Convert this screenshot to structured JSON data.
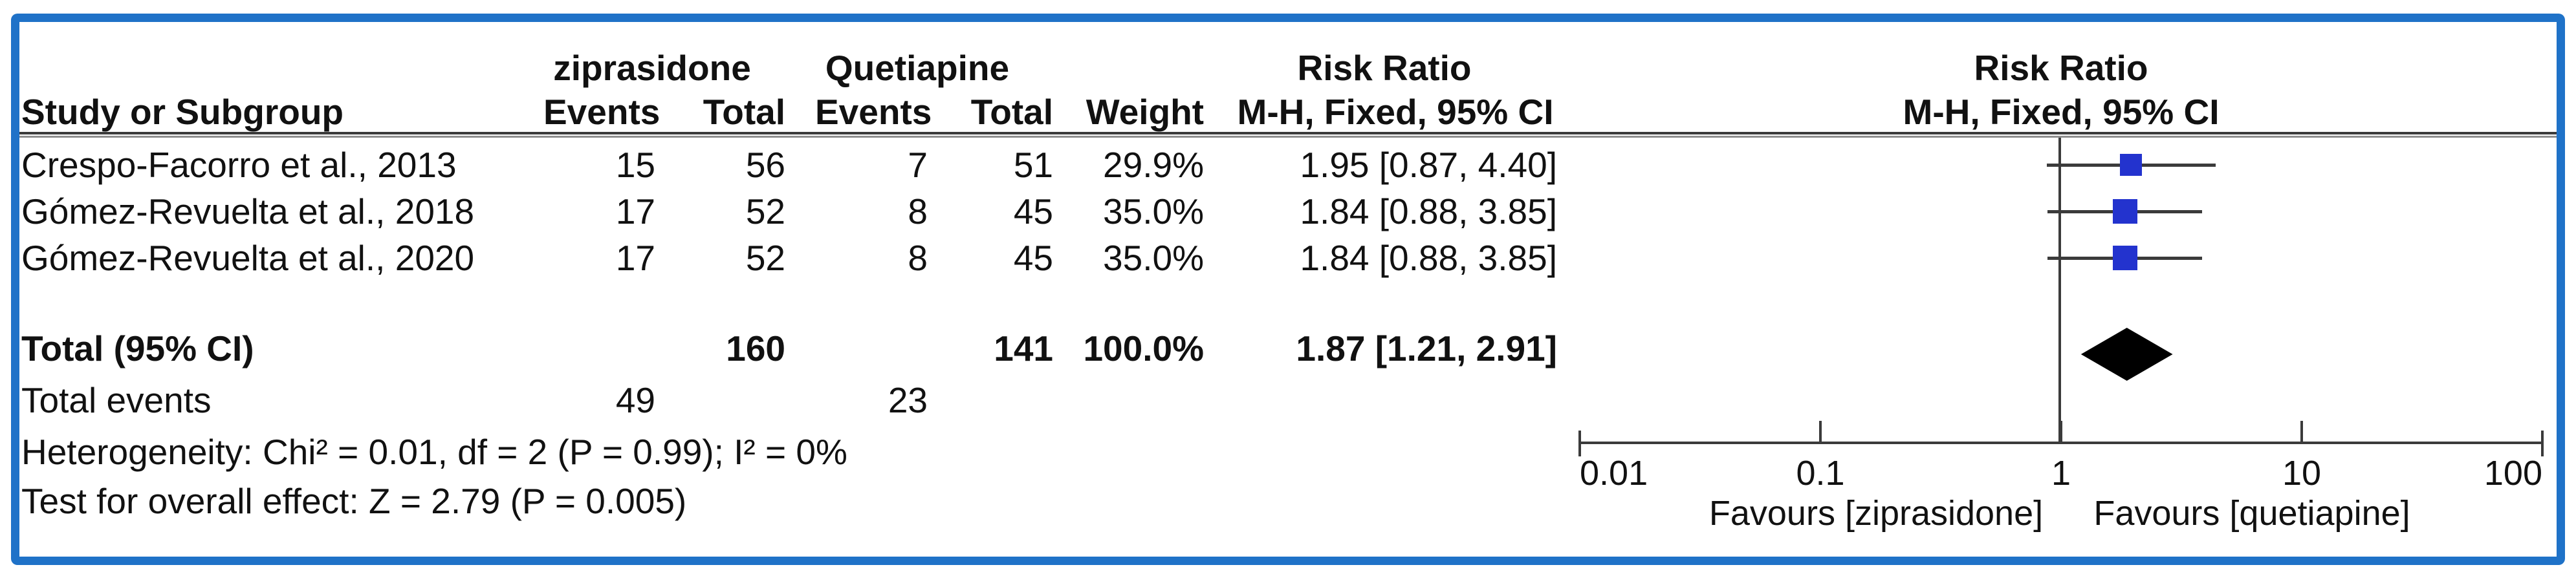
{
  "colors": {
    "accent": "#1F72C8",
    "marker_blue": "#2333CE",
    "line_gray": "#3B3B3B",
    "diamond_black": "#000000"
  },
  "table": {
    "header": {
      "study": "Study or Subgroup",
      "group1": "ziprasidone",
      "group2": "Quetiapine",
      "events": "Events",
      "total": "Total",
      "weight": "Weight",
      "risk_ratio": "Risk Ratio",
      "mh_fixed_ci": "M-H, Fixed, 95% CI"
    },
    "rows": [
      {
        "study": "Crespo-Facorro et al., 2013",
        "e1": "15",
        "t1": "56",
        "e2": "7",
        "t2": "51",
        "weight": "29.9%",
        "ci": "1.95 [0.87, 4.40]"
      },
      {
        "study": "Gómez-Revuelta et al., 2018",
        "e1": "17",
        "t1": "52",
        "e2": "8",
        "t2": "45",
        "weight": "35.0%",
        "ci": "1.84 [0.88, 3.85]"
      },
      {
        "study": "Gómez-Revuelta et al., 2020",
        "e1": "17",
        "t1": "52",
        "e2": "8",
        "t2": "45",
        "weight": "35.0%",
        "ci": "1.84 [0.88, 3.85]"
      }
    ],
    "total": {
      "label": "Total (95% CI)",
      "t1": "160",
      "t2": "141",
      "weight": "100.0%",
      "ci": "1.87 [1.21, 2.91]"
    },
    "total_events": {
      "label": "Total events",
      "e1": "49",
      "e2": "23"
    },
    "heterogeneity": "Heterogeneity: Chi² = 0.01, df = 2 (P = 0.99); I² = 0%",
    "overall_effect": "Test for overall effect: Z = 2.79 (P = 0.005)"
  },
  "plot": {
    "favours_left": "Favours [ziprasidone]",
    "favours_right": "Favours [quetiapine]"
  },
  "chart_data": {
    "type": "forest",
    "effect_measure": "Risk Ratio",
    "method": "M-H, Fixed, 95% CI",
    "x_scale": "log10",
    "xlim": [
      0.01,
      100
    ],
    "axis_ticks": [
      0.01,
      0.1,
      1,
      10,
      100
    ],
    "null_line": 1,
    "studies": [
      {
        "name": "Crespo-Facorro et al., 2013",
        "events_exp": 15,
        "total_exp": 56,
        "events_ctrl": 7,
        "total_ctrl": 51,
        "weight_pct": 29.9,
        "rr": 1.95,
        "ci_low": 0.87,
        "ci_high": 4.4
      },
      {
        "name": "Gómez-Revuelta et al., 2018",
        "events_exp": 17,
        "total_exp": 52,
        "events_ctrl": 8,
        "total_ctrl": 45,
        "weight_pct": 35.0,
        "rr": 1.84,
        "ci_low": 0.88,
        "ci_high": 3.85
      },
      {
        "name": "Gómez-Revuelta et al., 2020",
        "events_exp": 17,
        "total_exp": 52,
        "events_ctrl": 8,
        "total_ctrl": 45,
        "weight_pct": 35.0,
        "rr": 1.84,
        "ci_low": 0.88,
        "ci_high": 3.85
      }
    ],
    "total": {
      "total_exp": 160,
      "total_ctrl": 141,
      "weight_pct": 100.0,
      "rr": 1.87,
      "ci_low": 1.21,
      "ci_high": 2.91,
      "total_events_exp": 49,
      "total_events_ctrl": 23
    },
    "heterogeneity": {
      "chi2": 0.01,
      "df": 2,
      "p": 0.99,
      "i2_pct": 0
    },
    "overall_effect": {
      "z": 2.79,
      "p": 0.005
    },
    "favours_left": "Favours [ziprasidone]",
    "favours_right": "Favours [quetiapine]"
  }
}
